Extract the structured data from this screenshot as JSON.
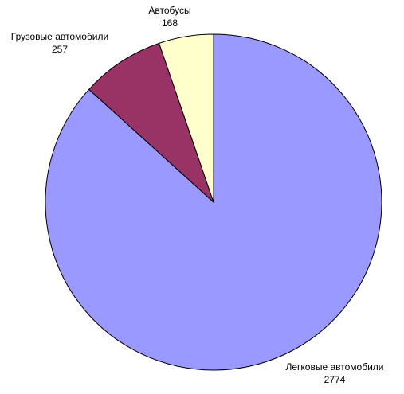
{
  "chart_data": {
    "type": "pie",
    "categories": [
      "Легковые автомобили",
      "Грузовые автомобили",
      "Автобусы"
    ],
    "values": [
      2774,
      257,
      168
    ],
    "colors": [
      "#9999ff",
      "#993366",
      "#ffffcc"
    ]
  }
}
